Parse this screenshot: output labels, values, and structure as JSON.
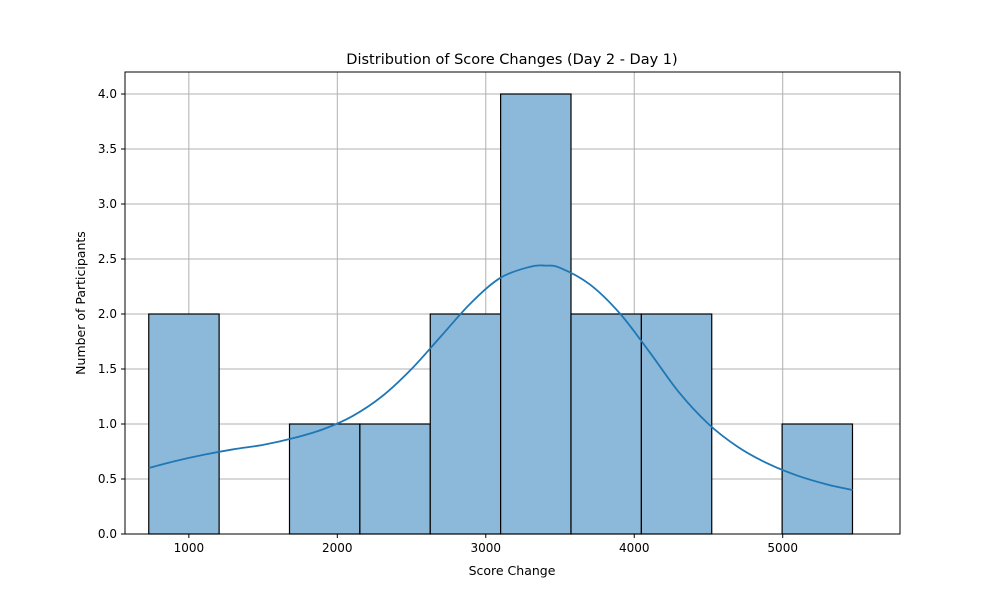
{
  "chart_data": {
    "type": "bar",
    "title": "Distribution of Score Changes (Day 2 - Day 1)",
    "xlabel": "Score Change",
    "ylabel": "Number of Participants",
    "xlim": [
      570,
      5790
    ],
    "ylim": [
      0,
      4.2
    ],
    "grid": true,
    "x_ticks": [
      1000,
      2000,
      3000,
      4000,
      5000
    ],
    "y_ticks": [
      "0.0",
      "0.5",
      "1.0",
      "1.5",
      "2.0",
      "2.5",
      "3.0",
      "3.5",
      "4.0"
    ],
    "bins": [
      {
        "start": 730,
        "end": 1204,
        "count": 2
      },
      {
        "start": 1204,
        "end": 1678,
        "count": 0
      },
      {
        "start": 1678,
        "end": 2152,
        "count": 1
      },
      {
        "start": 2152,
        "end": 2626,
        "count": 1
      },
      {
        "start": 2626,
        "end": 3100,
        "count": 2
      },
      {
        "start": 3100,
        "end": 3574,
        "count": 4
      },
      {
        "start": 3574,
        "end": 4048,
        "count": 2
      },
      {
        "start": 4048,
        "end": 4522,
        "count": 2
      },
      {
        "start": 4522,
        "end": 4996,
        "count": 0
      },
      {
        "start": 4996,
        "end": 5470,
        "count": 1
      }
    ],
    "kde": {
      "x": [
        730,
        900,
        1100,
        1300,
        1500,
        1700,
        1900,
        2100,
        2300,
        2500,
        2700,
        2900,
        3100,
        3300,
        3400,
        3500,
        3700,
        3900,
        4100,
        4300,
        4500,
        4700,
        4900,
        5100,
        5300,
        5470
      ],
      "y": [
        0.6,
        0.66,
        0.72,
        0.77,
        0.81,
        0.87,
        0.95,
        1.07,
        1.25,
        1.5,
        1.8,
        2.1,
        2.33,
        2.43,
        2.44,
        2.42,
        2.27,
        2.01,
        1.66,
        1.29,
        1.0,
        0.79,
        0.64,
        0.53,
        0.45,
        0.4
      ]
    },
    "colors": {
      "bar_fill": "#8cb9d9",
      "bar_edge": "#000000",
      "kde_line": "#1f77b4"
    }
  }
}
